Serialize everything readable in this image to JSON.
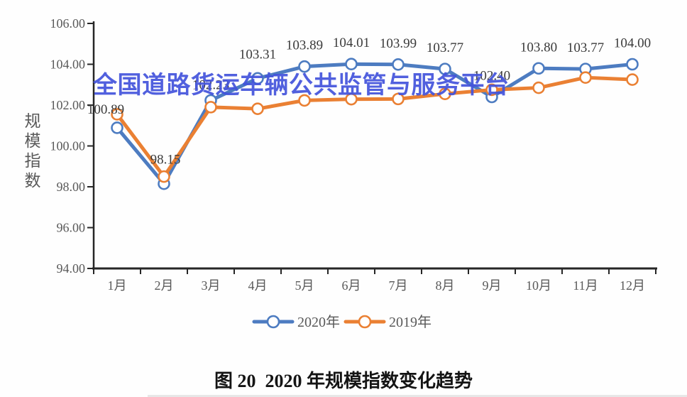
{
  "watermark": "全国道路货运车辆公共监管与服务平台",
  "watermark_color": "#4353DC",
  "figure_caption": "图 20  2020 年规模指数变化趋势",
  "chart_data": {
    "type": "line",
    "title": "图 20 2020 年规模指数变化趋势",
    "ylabel": "规模指数",
    "xlabel": "",
    "grid": false,
    "legend_position": "bottom",
    "ylim": [
      94,
      106
    ],
    "ytick_step": 2,
    "y_ticks": [
      "106.00",
      "104.00",
      "102.00",
      "100.00",
      "98.00",
      "96.00",
      "94.00"
    ],
    "categories": [
      "1月",
      "2月",
      "3月",
      "4月",
      "5月",
      "6月",
      "7月",
      "8月",
      "9月",
      "10月",
      "11月",
      "12月"
    ],
    "series": [
      {
        "name": "2020年",
        "color": "#4D7CC1",
        "values": [
          100.89,
          98.15,
          102.23,
          103.31,
          103.89,
          104.01,
          103.99,
          103.77,
          102.4,
          103.8,
          103.77,
          104.0
        ],
        "point_labels": [
          "100.89",
          "98.15",
          "102.23",
          "103.31",
          "103.89",
          "104.01",
          "103.99",
          "103.77",
          "102.40",
          "103.80",
          "103.77",
          "104.00"
        ]
      },
      {
        "name": "2019年",
        "color": "#EA8033",
        "values": [
          101.55,
          98.5,
          101.9,
          101.82,
          102.23,
          102.29,
          102.3,
          102.55,
          102.75,
          102.85,
          103.35,
          103.25
        ],
        "point_labels": null
      }
    ],
    "axis_color": "#262626",
    "tick_text_color": "#595959",
    "data_label_color": "#3a3a3a"
  }
}
